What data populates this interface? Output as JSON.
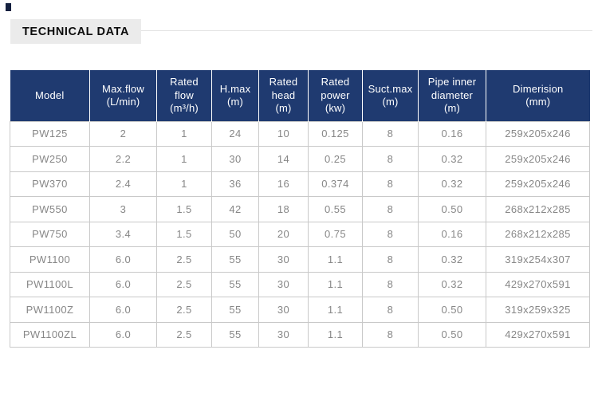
{
  "header": {
    "title": "TECHNICAL DATA"
  },
  "colors": {
    "navy": "#1f3a70",
    "accent_square": "#14203f",
    "title_bg": "#ebebeb",
    "rule": "#e3e3e3",
    "grid": "#c9c9c9",
    "cell_text": "#878787"
  },
  "table": {
    "column_headers": [
      "Model",
      "Max.flow\n(L/min)",
      "Rated\nflow\n(m³/h)",
      "H.max\n(m)",
      "Rated\nhead\n(m)",
      "Rated\npower\n(kw)",
      "Suct.max\n(m)",
      "Pipe inner\ndiameter\n(m)",
      "Dimerision\n(mm)"
    ],
    "rows": [
      [
        "PW125",
        "2",
        "1",
        "24",
        "10",
        "0.125",
        "8",
        "0.16",
        "259x205x246"
      ],
      [
        "PW250",
        "2.2",
        "1",
        "30",
        "14",
        "0.25",
        "8",
        "0.32",
        "259x205x246"
      ],
      [
        "PW370",
        "2.4",
        "1",
        "36",
        "16",
        "0.374",
        "8",
        "0.32",
        "259x205x246"
      ],
      [
        "PW550",
        "3",
        "1.5",
        "42",
        "18",
        "0.55",
        "8",
        "0.50",
        "268x212x285"
      ],
      [
        "PW750",
        "3.4",
        "1.5",
        "50",
        "20",
        "0.75",
        "8",
        "0.16",
        "268x212x285"
      ],
      [
        "PW1100",
        "6.0",
        "2.5",
        "55",
        "30",
        "1.1",
        "8",
        "0.32",
        "319x254x307"
      ],
      [
        "PW1100L",
        "6.0",
        "2.5",
        "55",
        "30",
        "1.1",
        "8",
        "0.32",
        "429x270x591"
      ],
      [
        "PW1100Z",
        "6.0",
        "2.5",
        "55",
        "30",
        "1.1",
        "8",
        "0.50",
        "319x259x325"
      ],
      [
        "PW1100ZL",
        "6.0",
        "2.5",
        "55",
        "30",
        "1.1",
        "8",
        "0.50",
        "429x270x591"
      ]
    ]
  }
}
